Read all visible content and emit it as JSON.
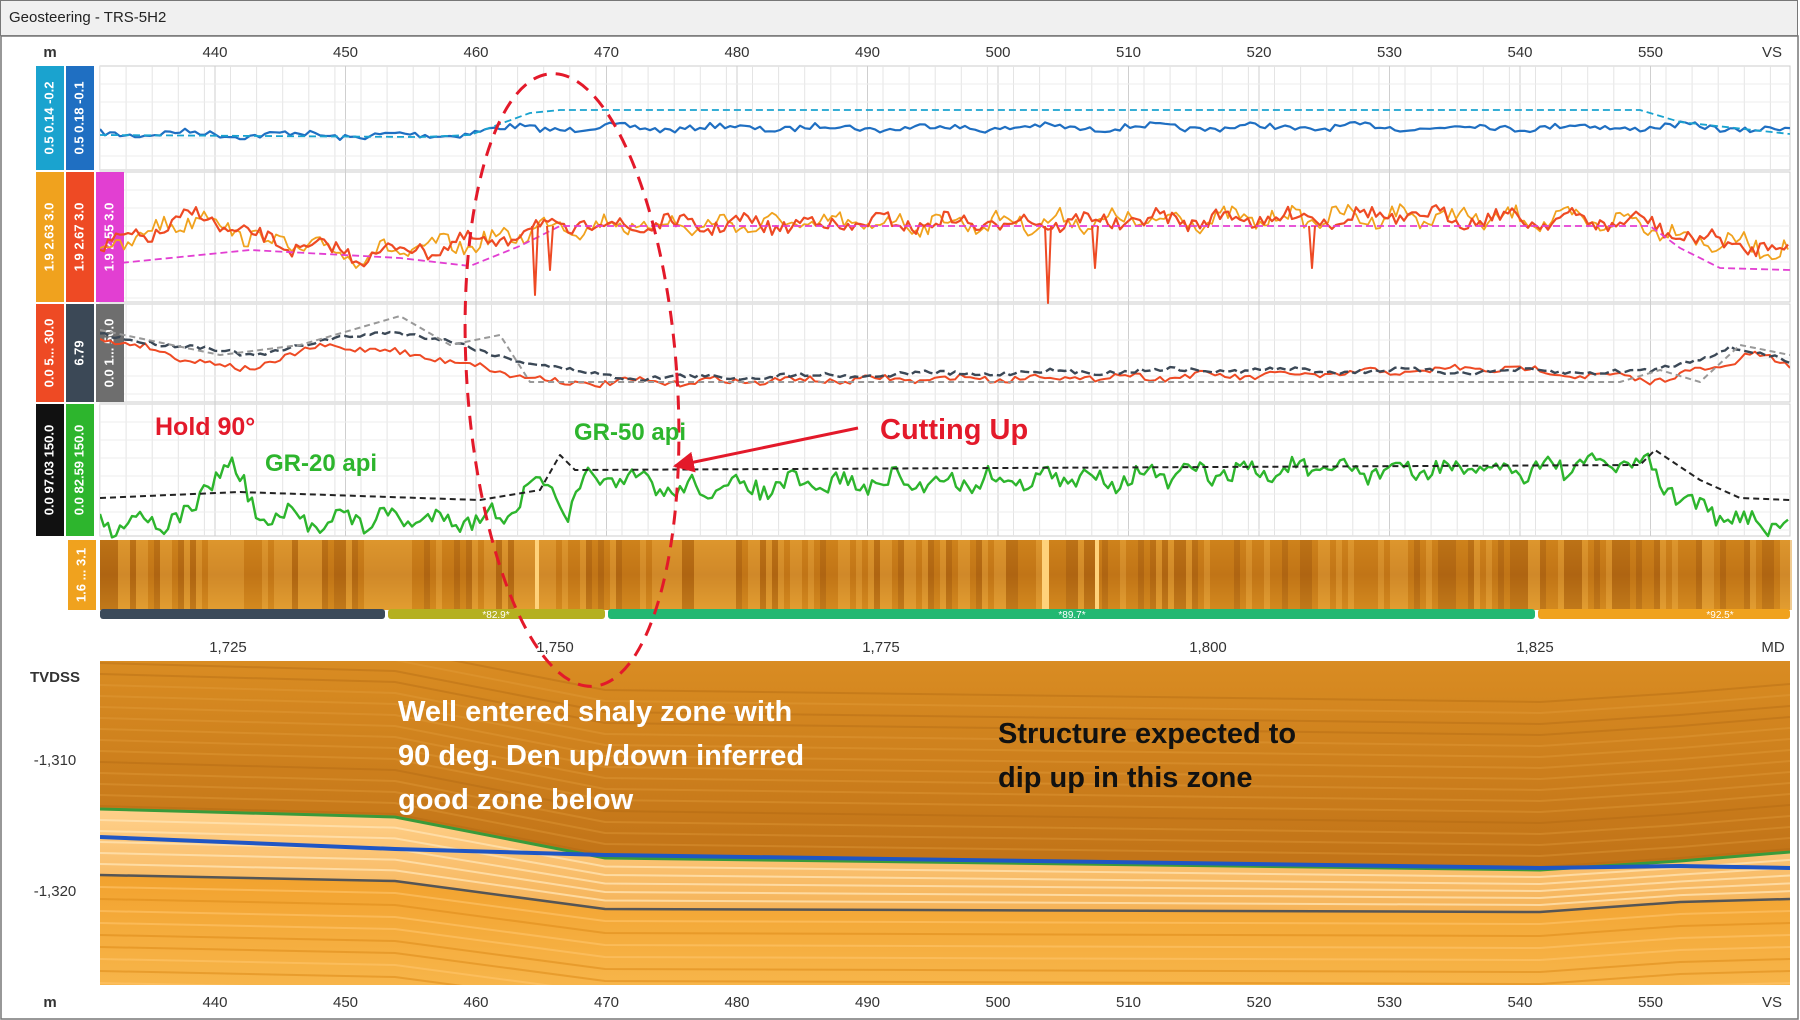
{
  "window": {
    "title": "Geosteering - TRS-5H2"
  },
  "axes": {
    "top_unit": "m",
    "top_ticks": [
      "440",
      "450",
      "460",
      "470",
      "480",
      "490",
      "500",
      "510",
      "520",
      "530",
      "540",
      "550"
    ],
    "top_end": "VS",
    "md_ticks": [
      "1,725",
      "1,750",
      "1,775",
      "1,800",
      "1,825"
    ],
    "md_end": "MD",
    "bottom_unit": "m",
    "bottom_ticks": [
      "440",
      "450",
      "460",
      "470",
      "480",
      "490",
      "500",
      "510",
      "520",
      "530",
      "540",
      "550"
    ],
    "bottom_end": "VS",
    "tvdss_label": "TVDSS",
    "tvdss_ticks": [
      "-1,310",
      "-1,320"
    ]
  },
  "tracks": {
    "track1": [
      {
        "scale": "0.5 0.14 -0.2",
        "color": "#1aa3cf"
      },
      {
        "scale": "0.5 0.18 -0.1",
        "color": "#1f6fc2"
      }
    ],
    "track2": [
      {
        "scale": "1.9   2.63   3.0",
        "color": "#f0a21e"
      },
      {
        "scale": "1.9   2.67   3.0",
        "color": "#ee4a24"
      },
      {
        "scale": "1.9   2.55   3.0",
        "color": "#e23fd2"
      }
    ],
    "track3": [
      {
        "scale": "0.0 5...   30.0",
        "color": "#ee4a24"
      },
      {
        "scale": "6.79",
        "color": "#3b4856"
      },
      {
        "scale": "0.0 1...   50.0",
        "color": "#6e6e6e"
      }
    ],
    "track4": [
      {
        "scale": "0.0 97.03 150.0",
        "color": "#111111"
      },
      {
        "scale": "0.0 82.59 150.0",
        "color": "#2db52d"
      }
    ],
    "track5": [
      {
        "scale": "1.6 ... 3.1",
        "color": "#f0a21e"
      }
    ]
  },
  "dip_bar": [
    {
      "label": "",
      "color": "#3b4a5a"
    },
    {
      "label": "*82.9*",
      "color": "#b5b020"
    },
    {
      "label": "*89.7*",
      "color": "#22b872"
    },
    {
      "label": "*92.5*",
      "color": "#f0a21e"
    }
  ],
  "annotations": {
    "hold": "Hold 90°",
    "gr20": "GR-20 api",
    "gr50": "GR-50 api",
    "cutting_up": "Cutting Up",
    "well_entered": [
      "Well entered shaly zone with",
      "90 deg. Den up/down inferred",
      "good zone below"
    ],
    "structure": [
      "Structure expected to",
      "dip up in this zone"
    ]
  },
  "colors": {
    "annotation_red": "#e3192a",
    "annotation_green": "#2db52d",
    "section_orange": "#e89a25"
  }
}
